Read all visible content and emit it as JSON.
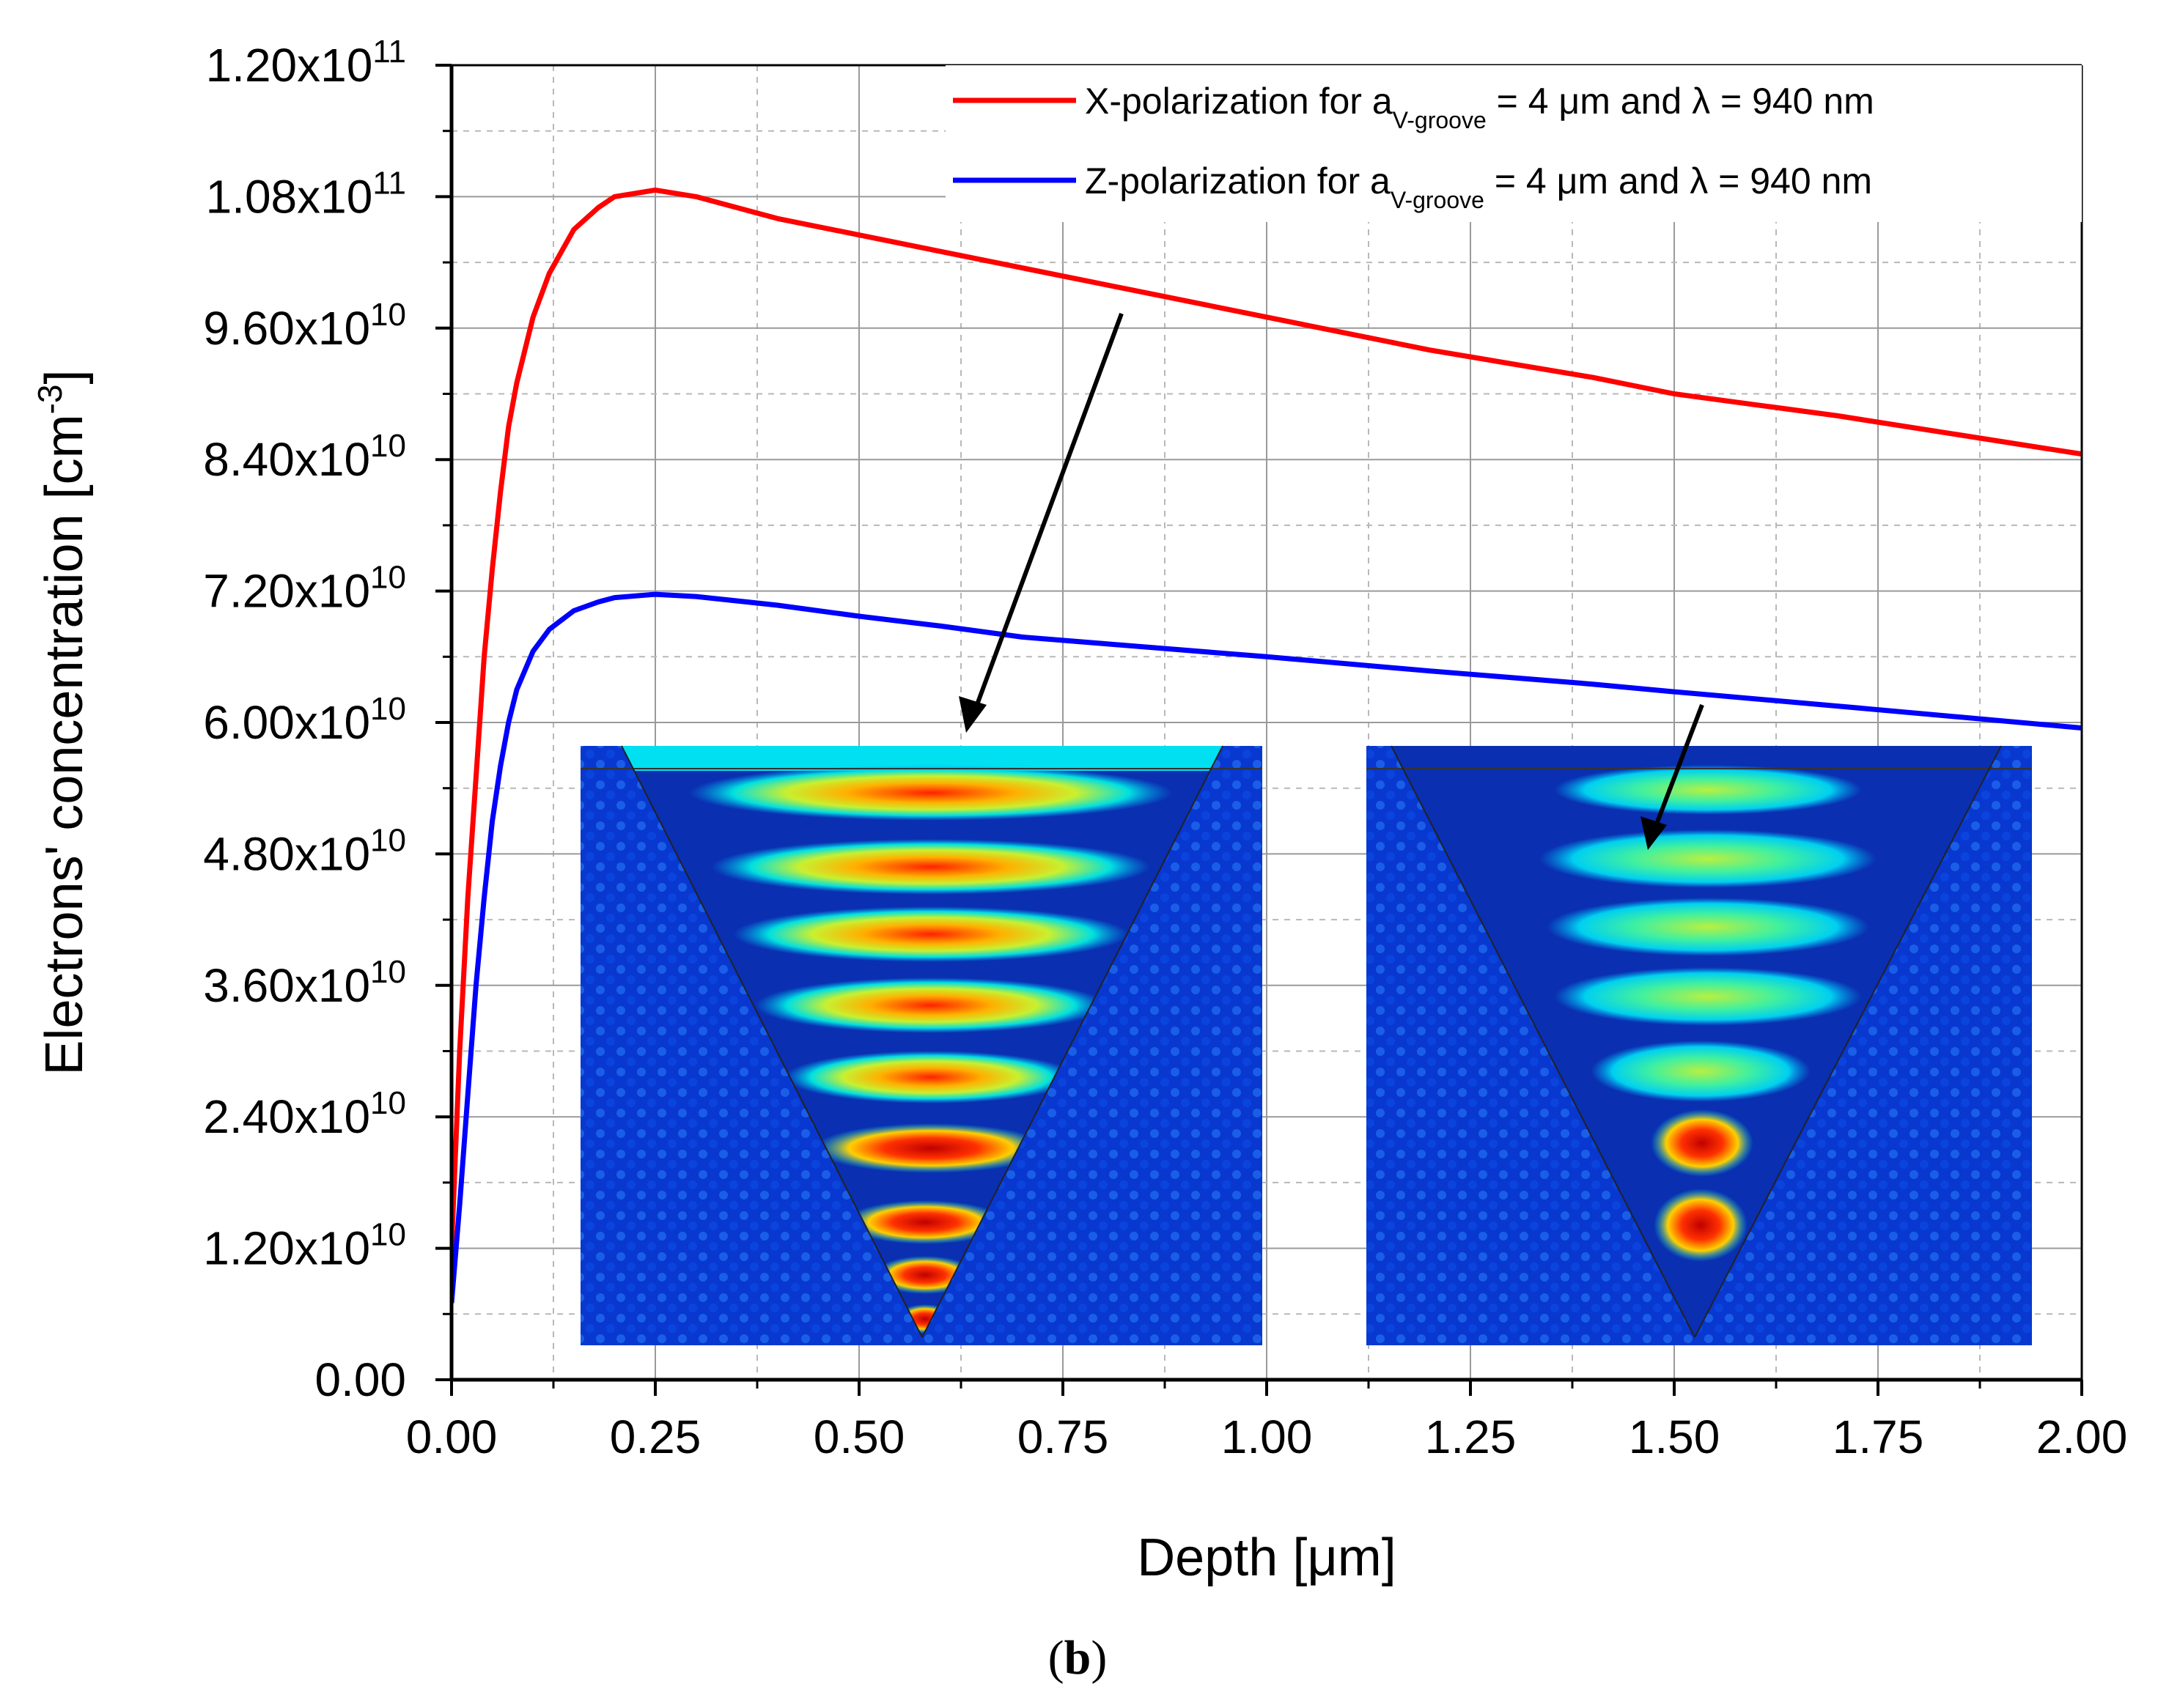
{
  "chart_data": {
    "type": "line",
    "x": [
      0.0,
      0.01,
      0.02,
      0.03,
      0.04,
      0.05,
      0.06,
      0.07,
      0.08,
      0.1,
      0.12,
      0.15,
      0.18,
      0.2,
      0.25,
      0.3,
      0.4,
      0.5,
      0.6,
      0.7,
      0.8,
      1.0,
      1.2,
      1.4,
      1.5,
      1.7,
      2.0
    ],
    "series": [
      {
        "name": "X-polarization",
        "color": "#ff0000",
        "values": [
          12000000000.0,
          30000000000.0,
          44000000000.0,
          55000000000.0,
          66000000000.0,
          74000000000.0,
          81000000000.0,
          87000000000.0,
          91000000000.0,
          97000000000.0,
          101000000000.0,
          105000000000.0,
          107000000000.0,
          108000000000.0,
          108600000000.0,
          108000000000.0,
          106000000000.0,
          104500000000.0,
          103000000000.0,
          101500000000.0,
          100000000000.0,
          97000000000.0,
          94000000000.0,
          91500000000.0,
          90000000000.0,
          88000000000.0,
          84500000000.0
        ]
      },
      {
        "name": "Z-polarization",
        "color": "#0000ff",
        "values": [
          7000000000.0,
          16000000000.0,
          26000000000.0,
          36000000000.0,
          44000000000.0,
          51000000000.0,
          56000000000.0,
          60000000000.0,
          63000000000.0,
          66500000000.0,
          68500000000.0,
          70200000000.0,
          71000000000.0,
          71400000000.0,
          71700000000.0,
          71500000000.0,
          70700000000.0,
          69700000000.0,
          68800000000.0,
          67800000000.0,
          67200000000.0,
          66000000000.0,
          64700000000.0,
          63500000000.0,
          62800000000.0,
          61500000000.0,
          59500000000.0
        ]
      }
    ],
    "xlim": [
      0,
      2.0
    ],
    "ylim": [
      0,
      120000000000.0
    ],
    "x_ticks": [
      "0.00",
      "0.25",
      "0.50",
      "0.75",
      "1.00",
      "1.25",
      "1.50",
      "1.75",
      "2.00"
    ],
    "x_tick_values": [
      0,
      0.25,
      0.5,
      0.75,
      1.0,
      1.25,
      1.5,
      1.75,
      2.0
    ],
    "y_ticks": [
      {
        "value": 0,
        "mantissa": "0.00",
        "exp": ""
      },
      {
        "value": 12000000000.0,
        "mantissa": "1.20x10",
        "exp": "10"
      },
      {
        "value": 24000000000.0,
        "mantissa": "2.40x10",
        "exp": "10"
      },
      {
        "value": 36000000000.0,
        "mantissa": "3.60x10",
        "exp": "10"
      },
      {
        "value": 48000000000.0,
        "mantissa": "4.80x10",
        "exp": "10"
      },
      {
        "value": 60000000000.0,
        "mantissa": "6.00x10",
        "exp": "10"
      },
      {
        "value": 72000000000.0,
        "mantissa": "7.20x10",
        "exp": "10"
      },
      {
        "value": 84000000000.0,
        "mantissa": "8.40x10",
        "exp": "10"
      },
      {
        "value": 96000000000.0,
        "mantissa": "9.60x10",
        "exp": "10"
      },
      {
        "value": 108000000000.0,
        "mantissa": "1.08x10",
        "exp": "11"
      },
      {
        "value": 120000000000.0,
        "mantissa": "1.20x10",
        "exp": "11"
      }
    ],
    "xlabel": "Depth [μm]",
    "ylabel_main": "Electrons' concentration [cm",
    "ylabel_exp": "-3",
    "ylabel_close": "]",
    "grid": true,
    "legend_placement": "top-right",
    "legend": [
      {
        "prefix": "X-polarization for a",
        "sub": "V-groove",
        "suffix": " = 4 μm and λ = 940 nm",
        "color": "#ff0000"
      },
      {
        "prefix": "Z-polarization for a",
        "sub": "V-groove",
        "suffix": " = 4 μm and λ = 940 nm",
        "color": "#0000ff"
      }
    ],
    "caption_open": "(",
    "caption_letter": "b",
    "caption_close": ")",
    "inset_colors": {
      "background": "#0a3ed6",
      "mid": "#00e0e0",
      "high": "#ffe000",
      "peak": "#ff2000"
    }
  }
}
